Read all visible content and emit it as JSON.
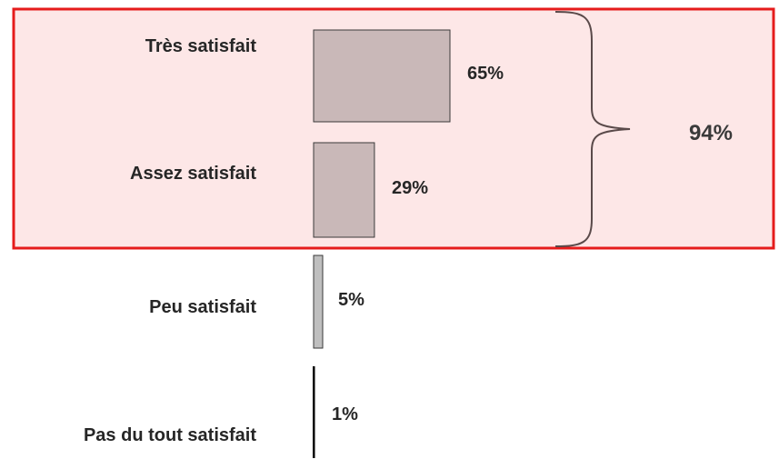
{
  "chart_data": {
    "type": "bar",
    "orientation": "horizontal",
    "categories": [
      "Très satisfait",
      "Assez satisfait",
      "Peu satisfait",
      "Pas du tout satisfait"
    ],
    "values": [
      65,
      29,
      5,
      1
    ],
    "value_labels": [
      "65%",
      "29%",
      "5%",
      "1%"
    ],
    "unit": "%",
    "title": "",
    "xlabel": "",
    "ylabel": "",
    "xlim": [
      0,
      100
    ],
    "grid": false,
    "legend": "none",
    "highlight_group": {
      "categories": [
        "Très satisfait",
        "Assez satisfait"
      ],
      "total_label": "94%",
      "fill_color": "#fde7e7",
      "border_color": "#e51c1c"
    },
    "bar_colors": {
      "top_two": "#c9b8b8",
      "peu": "#bfbfbf",
      "pas": "#000000"
    }
  }
}
